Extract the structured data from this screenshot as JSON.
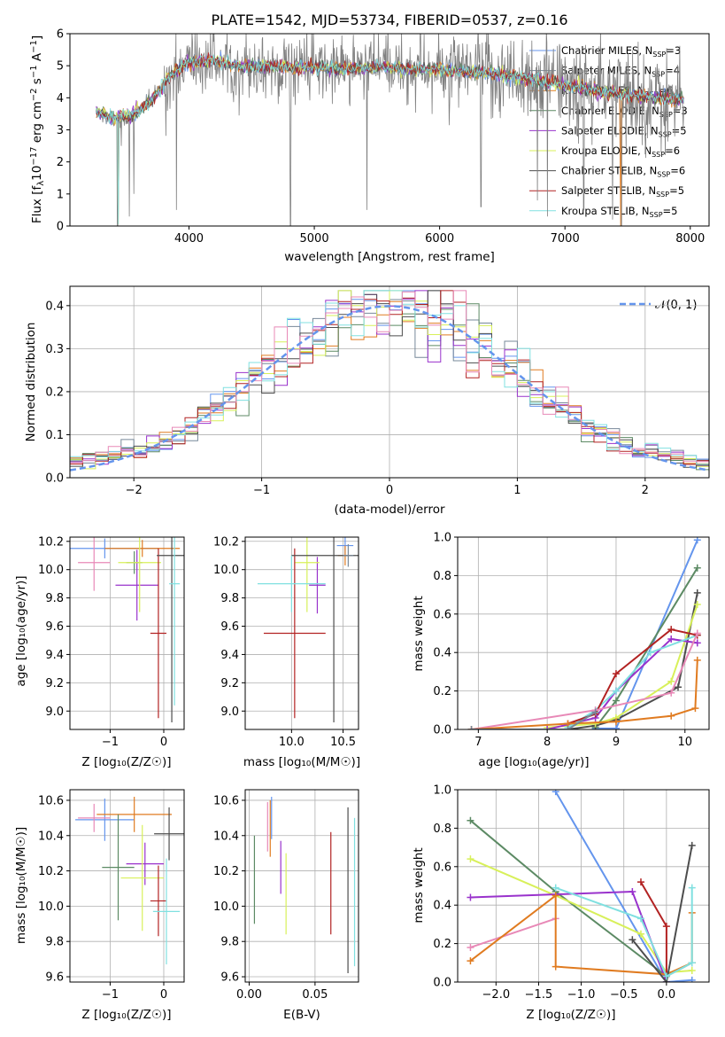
{
  "colors": {
    "chabrier_miles": "#6495ED",
    "salpeter_miles": "#778899",
    "kroupa_miles": "#E07B20",
    "chabrier_elodie": "#5C8A64",
    "salpeter_elodie": "#9932CC",
    "kroupa_elodie": "#D8F05A",
    "chabrier_stelib": "#4D4D4D",
    "salpeter_stelib": "#B22222",
    "kroupa_stelib": "#80E0E0",
    "extra_pink": "#E889B7",
    "gauss": "#6495ED"
  },
  "legend_spectrum": [
    {
      "key": "chabrier_miles",
      "prefix": "Chabrier MILES, N",
      "sub": "SSP",
      "suffix": "=3"
    },
    {
      "key": "salpeter_miles",
      "prefix": "Salpeter MILES, N",
      "sub": "SSP",
      "suffix": "=4"
    },
    {
      "key": "kroupa_miles",
      "prefix": "Kroupa MILES, N",
      "sub": "SSP",
      "suffix": "=6"
    },
    {
      "key": "chabrier_elodie",
      "prefix": "Chabrier ELODIE, N",
      "sub": "SSP",
      "suffix": "=3"
    },
    {
      "key": "salpeter_elodie",
      "prefix": "Salpeter ELODIE, N",
      "sub": "SSP",
      "suffix": "=5"
    },
    {
      "key": "kroupa_elodie",
      "prefix": "Kroupa ELODIE, N",
      "sub": "SSP",
      "suffix": "=6"
    },
    {
      "key": "chabrier_stelib",
      "prefix": "Chabrier STELIB, N",
      "sub": "SSP",
      "suffix": "=6"
    },
    {
      "key": "salpeter_stelib",
      "prefix": "Salpeter STELIB, N",
      "sub": "SSP",
      "suffix": "=5"
    },
    {
      "key": "kroupa_stelib",
      "prefix": "Kroupa STELIB, N",
      "sub": "SSP",
      "suffix": "=5"
    }
  ],
  "chart_data": [
    {
      "id": "spectrum",
      "type": "line",
      "title": "PLATE=1542, MJD=53734, FIBERID=0537, z=0.16",
      "xlabel": "wavelength [Angstrom, rest frame]",
      "ylabel_main": "Flux [f",
      "ylabel_sub": "λ",
      "ylabel_rest": "10",
      "ylabel_sup1": "−17",
      "ylabel_mid": " erg cm",
      "ylabel_sup2": "−2",
      "ylabel_mid2": " s",
      "ylabel_sup3": "−1",
      "ylabel_mid3": " A",
      "ylabel_sup4": "−1",
      "ylabel_end": "]",
      "xlim": [
        3050,
        8150
      ],
      "ylim": [
        0,
        6
      ],
      "xticks": [
        4000,
        5000,
        6000,
        7000,
        8000
      ],
      "yticks": [
        0,
        1,
        2,
        3,
        4,
        5,
        6
      ],
      "data_color": "#808080",
      "continuum_x": [
        3260,
        3400,
        3550,
        3700,
        3850,
        4000,
        4200,
        4400,
        4600,
        4800,
        5000,
        5200,
        5500,
        5800,
        6100,
        6400,
        6700,
        7000,
        7300,
        7600,
        7900
      ],
      "continuum_y": [
        3.55,
        3.35,
        3.45,
        3.9,
        4.7,
        5.1,
        5.15,
        5.0,
        5.0,
        4.95,
        4.95,
        4.9,
        4.95,
        4.9,
        4.85,
        4.75,
        4.6,
        4.4,
        4.2,
        4.05,
        3.95
      ],
      "absorption_dips": [
        [
          3430,
          0
        ],
        [
          3460,
          2.5
        ],
        [
          3525,
          0.3
        ],
        [
          3560,
          1.0
        ],
        [
          3900,
          0.5
        ],
        [
          4810,
          0
        ],
        [
          5420,
          0.5
        ],
        [
          6330,
          0.6
        ],
        [
          6780,
          0.8
        ],
        [
          6860,
          0.3
        ],
        [
          7150,
          0.5
        ],
        [
          7380,
          0.2
        ],
        [
          7450,
          0
        ]
      ],
      "model_range": [
        3260,
        7950
      ]
    },
    {
      "id": "residuals",
      "type": "bar",
      "xlabel": "(data-model)/error",
      "ylabel": "Normed distribution",
      "xlim": [
        -2.5,
        2.5
      ],
      "ylim": [
        0,
        0.445
      ],
      "xticks": [
        -2,
        -1,
        0,
        1,
        2
      ],
      "yticks": [
        0.0,
        0.1,
        0.2,
        0.3,
        0.4
      ],
      "bin_width": 0.1,
      "legend_label": "𝒩(0, 1)",
      "gauss": {
        "mu": 0,
        "sigma": 1
      }
    },
    {
      "id": "age_vs_Z",
      "type": "scatter",
      "xlabel": "Z [log₁₀(Z/Z☉)]",
      "ylabel": "age  [log₁₀(age/yr)]",
      "xlim": [
        -1.75,
        0.38
      ],
      "ylim": [
        8.87,
        10.23
      ],
      "xticks": [
        -1,
        0
      ],
      "yticks": [
        9.0,
        9.2,
        9.4,
        9.6,
        9.8,
        10.0,
        10.2
      ],
      "points": [
        {
          "key": "chabrier_miles",
          "x": -1.1,
          "xerr": 1.0,
          "y": 10.15,
          "yerr": 0.07
        },
        {
          "key": "kroupa_miles",
          "x": -0.4,
          "xerr": 0.7,
          "y": 10.15,
          "yerr": 0.06
        },
        {
          "key": "salpeter_elodie",
          "x": -0.5,
          "xerr": 0.4,
          "y": 9.89,
          "yerr": 0.25
        },
        {
          "key": "chabrier_elodie",
          "x": -0.55,
          "xerr": 0.15,
          "y": 10.05,
          "yerr": 0.08
        },
        {
          "key": "kroupa_elodie",
          "x": -0.45,
          "xerr": 0.4,
          "y": 10.05,
          "yerr": 0.35
        },
        {
          "key": "salpeter_stelib",
          "x": -0.1,
          "xerr": 0.15,
          "y": 9.55,
          "yerr": 0.6
        },
        {
          "key": "chabrier_stelib",
          "x": 0.15,
          "xerr": 0.28,
          "y": 10.1,
          "yerr": 1.18
        },
        {
          "key": "kroupa_stelib",
          "x": 0.2,
          "xerr": 0.1,
          "y": 9.9,
          "yerr": 0.86
        },
        {
          "key": "extra_pink",
          "x": -1.3,
          "xerr": 0.3,
          "y": 10.05,
          "yerr": 0.2
        }
      ]
    },
    {
      "id": "age_vs_mass",
      "type": "scatter",
      "xlabel": "mass [log₁₀(M/M☉)]",
      "ylabel": "",
      "xlim": [
        9.55,
        10.65
      ],
      "ylim": [
        8.87,
        10.23
      ],
      "xticks": [
        10.0,
        10.5
      ],
      "yticks": [
        9.0,
        9.2,
        9.4,
        9.6,
        9.8,
        10.0,
        10.2
      ],
      "points": [
        {
          "key": "chabrier_miles",
          "x": 10.52,
          "xerr": 0.08,
          "y": 10.17,
          "yerr": 0.07
        },
        {
          "key": "kroupa_miles",
          "x": 10.52,
          "xerr": 0.07,
          "y": 10.1,
          "yerr": 0.07
        },
        {
          "key": "salpeter_elodie",
          "x": 10.25,
          "xerr": 0.08,
          "y": 9.89,
          "yerr": 0.2
        },
        {
          "key": "kroupa_elodie",
          "x": 10.15,
          "xerr": 0.12,
          "y": 10.05,
          "yerr": 0.35
        },
        {
          "key": "salpeter_stelib",
          "x": 10.03,
          "xerr": 0.3,
          "y": 9.55,
          "yerr": 0.6
        },
        {
          "key": "chabrier_stelib",
          "x": 10.41,
          "xerr": 0.41,
          "y": 10.1,
          "yerr": 1.18
        },
        {
          "key": "kroupa_stelib",
          "x": 10.0,
          "xerr": 0.33,
          "y": 9.9,
          "yerr": 0.2
        },
        {
          "key": "salpeter_miles",
          "x": 10.55,
          "xerr": 0.05,
          "y": 10.1,
          "yerr": 0.08
        }
      ]
    },
    {
      "id": "weight_vs_age",
      "type": "line",
      "xlabel": "age  [log₁₀(age/yr)]",
      "ylabel": "mass weight",
      "xlim": [
        6.7,
        10.35
      ],
      "ylim": [
        0,
        1
      ],
      "xticks": [
        7,
        8,
        9,
        10
      ],
      "yticks": [
        0.0,
        0.2,
        0.4,
        0.6,
        0.8,
        1.0
      ],
      "series": [
        {
          "key": "chabrier_miles",
          "x": [
            8.7,
            9.0,
            10.18
          ],
          "y": [
            0.005,
            0.005,
            0.985
          ]
        },
        {
          "key": "chabrier_elodie",
          "x": [
            8.7,
            9.0,
            10.18
          ],
          "y": [
            0.01,
            0.15,
            0.84
          ]
        },
        {
          "key": "chabrier_stelib",
          "x": [
            8.3,
            8.7,
            9.0,
            9.9,
            10.18
          ],
          "y": [
            0.0,
            0.02,
            0.05,
            0.22,
            0.71
          ]
        },
        {
          "key": "kroupa_elodie",
          "x": [
            8.0,
            8.7,
            9.0,
            9.8,
            10.18
          ],
          "y": [
            0.01,
            0.03,
            0.06,
            0.25,
            0.65
          ]
        },
        {
          "key": "salpeter_elodie",
          "x": [
            8.0,
            8.7,
            9.0,
            9.8,
            10.18
          ],
          "y": [
            0.0,
            0.06,
            0.2,
            0.47,
            0.45
          ]
        },
        {
          "key": "kroupa_stelib",
          "x": [
            8.3,
            8.7,
            9.0,
            9.5,
            10.18
          ],
          "y": [
            0.01,
            0.1,
            0.2,
            0.4,
            0.49
          ]
        },
        {
          "key": "salpeter_stelib",
          "x": [
            8.3,
            8.7,
            9.0,
            9.8,
            10.18
          ],
          "y": [
            0.03,
            0.08,
            0.29,
            0.52,
            0.49
          ]
        },
        {
          "key": "extra_pink",
          "x": [
            6.9,
            8.7,
            9.8,
            10.18
          ],
          "y": [
            0.0,
            0.1,
            0.19,
            0.5
          ]
        },
        {
          "key": "kroupa_miles",
          "x": [
            6.9,
            8.3,
            9.0,
            9.8,
            10.15,
            10.18
          ],
          "y": [
            0.0,
            0.03,
            0.04,
            0.07,
            0.11,
            0.36
          ]
        },
        {
          "key": "salpeter_miles",
          "x": [
            6.9,
            8.3,
            8.7
          ],
          "y": [
            0.0,
            0.0,
            0.09
          ]
        }
      ]
    },
    {
      "id": "mass_vs_Z",
      "type": "scatter",
      "xlabel": "Z [log₁₀(Z/Z☉)]",
      "ylabel": "mass [log₁₀(M/M☉)]",
      "xlim": [
        -1.75,
        0.38
      ],
      "ylim": [
        9.57,
        10.66
      ],
      "xticks": [
        -1,
        0
      ],
      "yticks": [
        9.6,
        9.8,
        10.0,
        10.2,
        10.4,
        10.6
      ],
      "points": [
        {
          "key": "chabrier_miles",
          "x": -1.1,
          "xerr": 0.55,
          "y": 10.49,
          "yerr": 0.12
        },
        {
          "key": "kroupa_miles",
          "x": -0.55,
          "xerr": 0.7,
          "y": 10.52,
          "yerr": 0.1
        },
        {
          "key": "chabrier_elodie",
          "x": -0.85,
          "xerr": 0.3,
          "y": 10.22,
          "yerr": 0.3
        },
        {
          "key": "salpeter_elodie",
          "x": -0.35,
          "xerr": 0.35,
          "y": 10.24,
          "yerr": 0.12
        },
        {
          "key": "kroupa_elodie",
          "x": -0.4,
          "xerr": 0.4,
          "y": 10.16,
          "yerr": 0.3
        },
        {
          "key": "salpeter_stelib",
          "x": -0.1,
          "xerr": 0.15,
          "y": 10.03,
          "yerr": 0.2
        },
        {
          "key": "chabrier_stelib",
          "x": 0.1,
          "xerr": 0.28,
          "y": 10.41,
          "yerr": 0.15
        },
        {
          "key": "kroupa_stelib",
          "x": 0.05,
          "xerr": 0.25,
          "y": 9.97,
          "yerr": 0.3
        },
        {
          "key": "extra_pink",
          "x": -1.3,
          "xerr": 0.3,
          "y": 10.5,
          "yerr": 0.08
        }
      ]
    },
    {
      "id": "mass_vs_ebv",
      "type": "scatter",
      "xlabel": "E(B-V)",
      "ylabel": "",
      "xlim": [
        -0.003,
        0.083
      ],
      "ylim": [
        9.57,
        10.66
      ],
      "xticks": [
        0.0,
        0.05
      ],
      "xtick_labels": [
        "0.00",
        "0.05"
      ],
      "yticks": [
        9.6,
        9.8,
        10.0,
        10.2,
        10.4,
        10.6
      ],
      "points": [
        {
          "key": "chabrier_elodie",
          "x": 0.004,
          "y": 10.15,
          "yerr": 0.25
        },
        {
          "key": "extra_pink",
          "x": 0.014,
          "y": 10.45,
          "yerr": 0.14
        },
        {
          "key": "kroupa_miles",
          "x": 0.016,
          "y": 10.44,
          "yerr": 0.16
        },
        {
          "key": "chabrier_miles",
          "x": 0.017,
          "y": 10.5,
          "yerr": 0.12
        },
        {
          "key": "salpeter_elodie",
          "x": 0.024,
          "y": 10.22,
          "yerr": 0.15
        },
        {
          "key": "kroupa_elodie",
          "x": 0.028,
          "y": 10.07,
          "yerr": 0.23
        },
        {
          "key": "salpeter_stelib",
          "x": 0.062,
          "y": 10.13,
          "yerr": 0.29
        },
        {
          "key": "chabrier_stelib",
          "x": 0.075,
          "y": 10.09,
          "yerr": 0.47
        },
        {
          "key": "kroupa_stelib",
          "x": 0.08,
          "y": 10.08,
          "yerr": 0.42
        }
      ]
    },
    {
      "id": "weight_vs_Z",
      "type": "line",
      "xlabel": "Z [log₁₀(Z/Z☉)]",
      "ylabel": "mass weight",
      "xlim": [
        -2.45,
        0.5
      ],
      "ylim": [
        0,
        1
      ],
      "xticks": [
        -2.0,
        -1.5,
        -1.0,
        -0.5,
        0.0
      ],
      "xtick_labels": [
        "−2.0",
        "−1.5",
        "−1.0",
        "−0.5",
        "0.0"
      ],
      "yticks": [
        0.0,
        0.2,
        0.4,
        0.6,
        0.8,
        1.0
      ],
      "series": [
        {
          "key": "chabrier_miles",
          "x": [
            -1.3,
            0.0,
            0.3
          ],
          "y": [
            0.99,
            0.0,
            0.01
          ]
        },
        {
          "key": "chabrier_elodie",
          "x": [
            -2.3,
            -1.3,
            0.0,
            0.3
          ],
          "y": [
            0.84,
            0.47,
            0.03,
            0.1
          ]
        },
        {
          "key": "kroupa_elodie",
          "x": [
            -2.3,
            -1.3,
            -0.3,
            0.0,
            0.3
          ],
          "y": [
            0.64,
            0.45,
            0.25,
            0.05,
            0.06
          ]
        },
        {
          "key": "salpeter_elodie",
          "x": [
            -2.3,
            -0.4,
            0.0
          ],
          "y": [
            0.44,
            0.47,
            0.0
          ]
        },
        {
          "key": "extra_pink",
          "x": [
            -2.3,
            -1.3
          ],
          "y": [
            0.18,
            0.33
          ]
        },
        {
          "key": "kroupa_miles",
          "x": [
            -2.3,
            -1.3,
            -1.3,
            0.0,
            0.3,
            0.3
          ],
          "y": [
            0.11,
            0.45,
            0.08,
            0.04,
            0.1,
            0.36
          ]
        },
        {
          "key": "salpeter_stelib",
          "x": [
            -0.3,
            0.0,
            0.0
          ],
          "y": [
            0.52,
            0.29,
            0.03
          ]
        },
        {
          "key": "chabrier_stelib",
          "x": [
            -0.4,
            0.0,
            0.3
          ],
          "y": [
            0.22,
            0.0,
            0.71
          ]
        },
        {
          "key": "kroupa_stelib",
          "x": [
            -1.3,
            -0.3,
            0.0,
            0.3,
            0.3
          ],
          "y": [
            0.49,
            0.33,
            0.03,
            0.1,
            0.49
          ]
        }
      ]
    }
  ]
}
